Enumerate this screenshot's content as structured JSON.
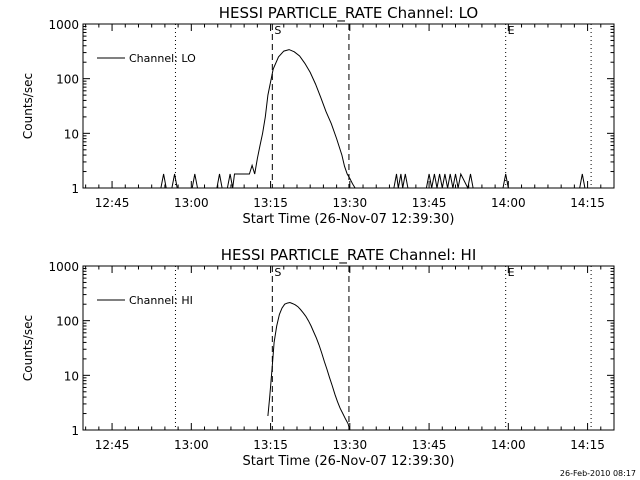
{
  "footer_timestamp": "26-Feb-2010 08:17",
  "chart_data": [
    {
      "type": "line",
      "title": "HESSI PARTICLE_RATE Channel: LO",
      "xlabel": "Start Time (26-Nov-07 12:39:30)",
      "ylabel": "Counts/sec",
      "yscale": "log",
      "ylim": [
        1,
        1000
      ],
      "ytick_labels": [
        "1",
        "10",
        "100",
        "1000"
      ],
      "xlim": [
        "12:39:30",
        "14:20:00"
      ],
      "xtick_labels": [
        "12:45",
        "13:00",
        "13:15",
        "13:30",
        "13:45",
        "14:00",
        "14:15"
      ],
      "legend": "top-left",
      "series": [
        {
          "name": "Channel: LO",
          "x": [
            "12:54:15",
            "12:54:45",
            "12:55:15",
            "12:56:20",
            "12:56:50",
            "12:57:20",
            "13:00:10",
            "13:00:40",
            "13:01:10",
            "13:04:50",
            "13:05:20",
            "13:05:50",
            "13:06:50",
            "13:07:20",
            "13:07:50",
            "13:08:10",
            "13:08:40",
            "13:09:00",
            "13:09:30",
            "13:10:30",
            "13:11:00",
            "13:11:30",
            "13:12:00",
            "13:12:30",
            "13:13:00",
            "13:13:30",
            "13:14:00",
            "13:14:30",
            "13:15:30",
            "13:16:30",
            "13:17:30",
            "13:18:30",
            "13:19:30",
            "13:20:30",
            "13:21:30",
            "13:22:30",
            "13:23:30",
            "13:24:30",
            "13:25:30",
            "13:26:30",
            "13:27:30",
            "13:28:30",
            "13:29:00",
            "13:29:30",
            "13:30:00",
            "13:30:30",
            "13:31:00",
            "13:38:20",
            "13:38:50",
            "13:39:10",
            "13:39:40",
            "13:40:00",
            "13:40:30",
            "13:41:00",
            "13:44:30",
            "13:45:00",
            "13:45:30",
            "13:46:00",
            "13:46:30",
            "13:47:00",
            "13:47:30",
            "13:48:00",
            "13:48:30",
            "13:49:00",
            "13:49:30",
            "13:50:00",
            "13:50:30",
            "13:51:00",
            "13:52:20",
            "13:52:50",
            "13:53:20",
            "13:59:00",
            "13:59:30",
            "14:00:00",
            "14:13:30",
            "14:14:00",
            "14:14:30"
          ],
          "y": [
            1,
            1.8,
            1,
            1,
            1.8,
            1,
            1,
            1.8,
            1,
            1,
            1.8,
            1,
            1,
            1.8,
            1,
            1.8,
            1.8,
            1.8,
            1.8,
            1.8,
            1.8,
            2.6,
            1.8,
            3.5,
            6,
            10,
            20,
            50,
            150,
            250,
            320,
            340,
            310,
            260,
            190,
            130,
            80,
            45,
            25,
            15,
            8,
            4,
            2.5,
            1.8,
            1.5,
            1.2,
            1,
            1,
            1.8,
            1,
            1.8,
            1,
            1.8,
            1,
            1,
            1.8,
            1,
            1.8,
            1,
            1.8,
            1,
            1.8,
            1,
            1.8,
            1,
            1.8,
            1,
            1.8,
            1,
            1.8,
            1,
            1,
            1.8,
            1,
            1,
            1.8,
            1
          ]
        }
      ],
      "annotations": [
        {
          "label": "S",
          "time": "13:15:20",
          "style": "dashed"
        },
        {
          "label": "",
          "time": "13:29:50",
          "style": "dashed"
        },
        {
          "label": "",
          "time": "12:57:00",
          "style": "dotted"
        },
        {
          "label": "E",
          "time": "13:59:30",
          "style": "dotted"
        },
        {
          "label": "",
          "time": "14:15:40",
          "style": "dotted"
        }
      ]
    },
    {
      "type": "line",
      "title": "HESSI PARTICLE_RATE Channel: HI",
      "xlabel": "Start Time (26-Nov-07 12:39:30)",
      "ylabel": "Counts/sec",
      "yscale": "log",
      "ylim": [
        1,
        1000
      ],
      "ytick_labels": [
        "1",
        "10",
        "100",
        "1000"
      ],
      "xlim": [
        "12:39:30",
        "14:20:00"
      ],
      "xtick_labels": [
        "12:45",
        "13:00",
        "13:15",
        "13:30",
        "13:45",
        "14:00",
        "14:15"
      ],
      "legend": "top-left",
      "series": [
        {
          "name": "Channel: HI",
          "x": [
            "13:14:30",
            "13:14:50",
            "13:15:20",
            "13:15:40",
            "13:16:10",
            "13:16:40",
            "13:17:10",
            "13:17:40",
            "13:18:10",
            "13:18:40",
            "13:19:10",
            "13:19:40",
            "13:20:10",
            "13:20:40",
            "13:21:10",
            "13:21:40",
            "13:22:10",
            "13:22:40",
            "13:23:10",
            "13:23:40",
            "13:24:10",
            "13:24:40",
            "13:25:10",
            "13:25:40",
            "13:26:10",
            "13:26:40",
            "13:27:10",
            "13:27:40",
            "13:28:10",
            "13:28:40",
            "13:29:10",
            "13:29:40",
            "13:30:00"
          ],
          "y": [
            1.8,
            4,
            15,
            40,
            80,
            130,
            170,
            200,
            210,
            215,
            205,
            195,
            180,
            160,
            140,
            120,
            100,
            80,
            62,
            48,
            36,
            26,
            18,
            13,
            9,
            6.5,
            4.5,
            3.3,
            2.5,
            2,
            1.6,
            1.3,
            1
          ]
        }
      ],
      "annotations": [
        {
          "label": "S",
          "time": "13:15:20",
          "style": "dashed"
        },
        {
          "label": "",
          "time": "13:29:50",
          "style": "dashed"
        },
        {
          "label": "",
          "time": "12:57:00",
          "style": "dotted"
        },
        {
          "label": "E",
          "time": "13:59:30",
          "style": "dotted"
        },
        {
          "label": "",
          "time": "14:15:40",
          "style": "dotted"
        }
      ]
    }
  ]
}
